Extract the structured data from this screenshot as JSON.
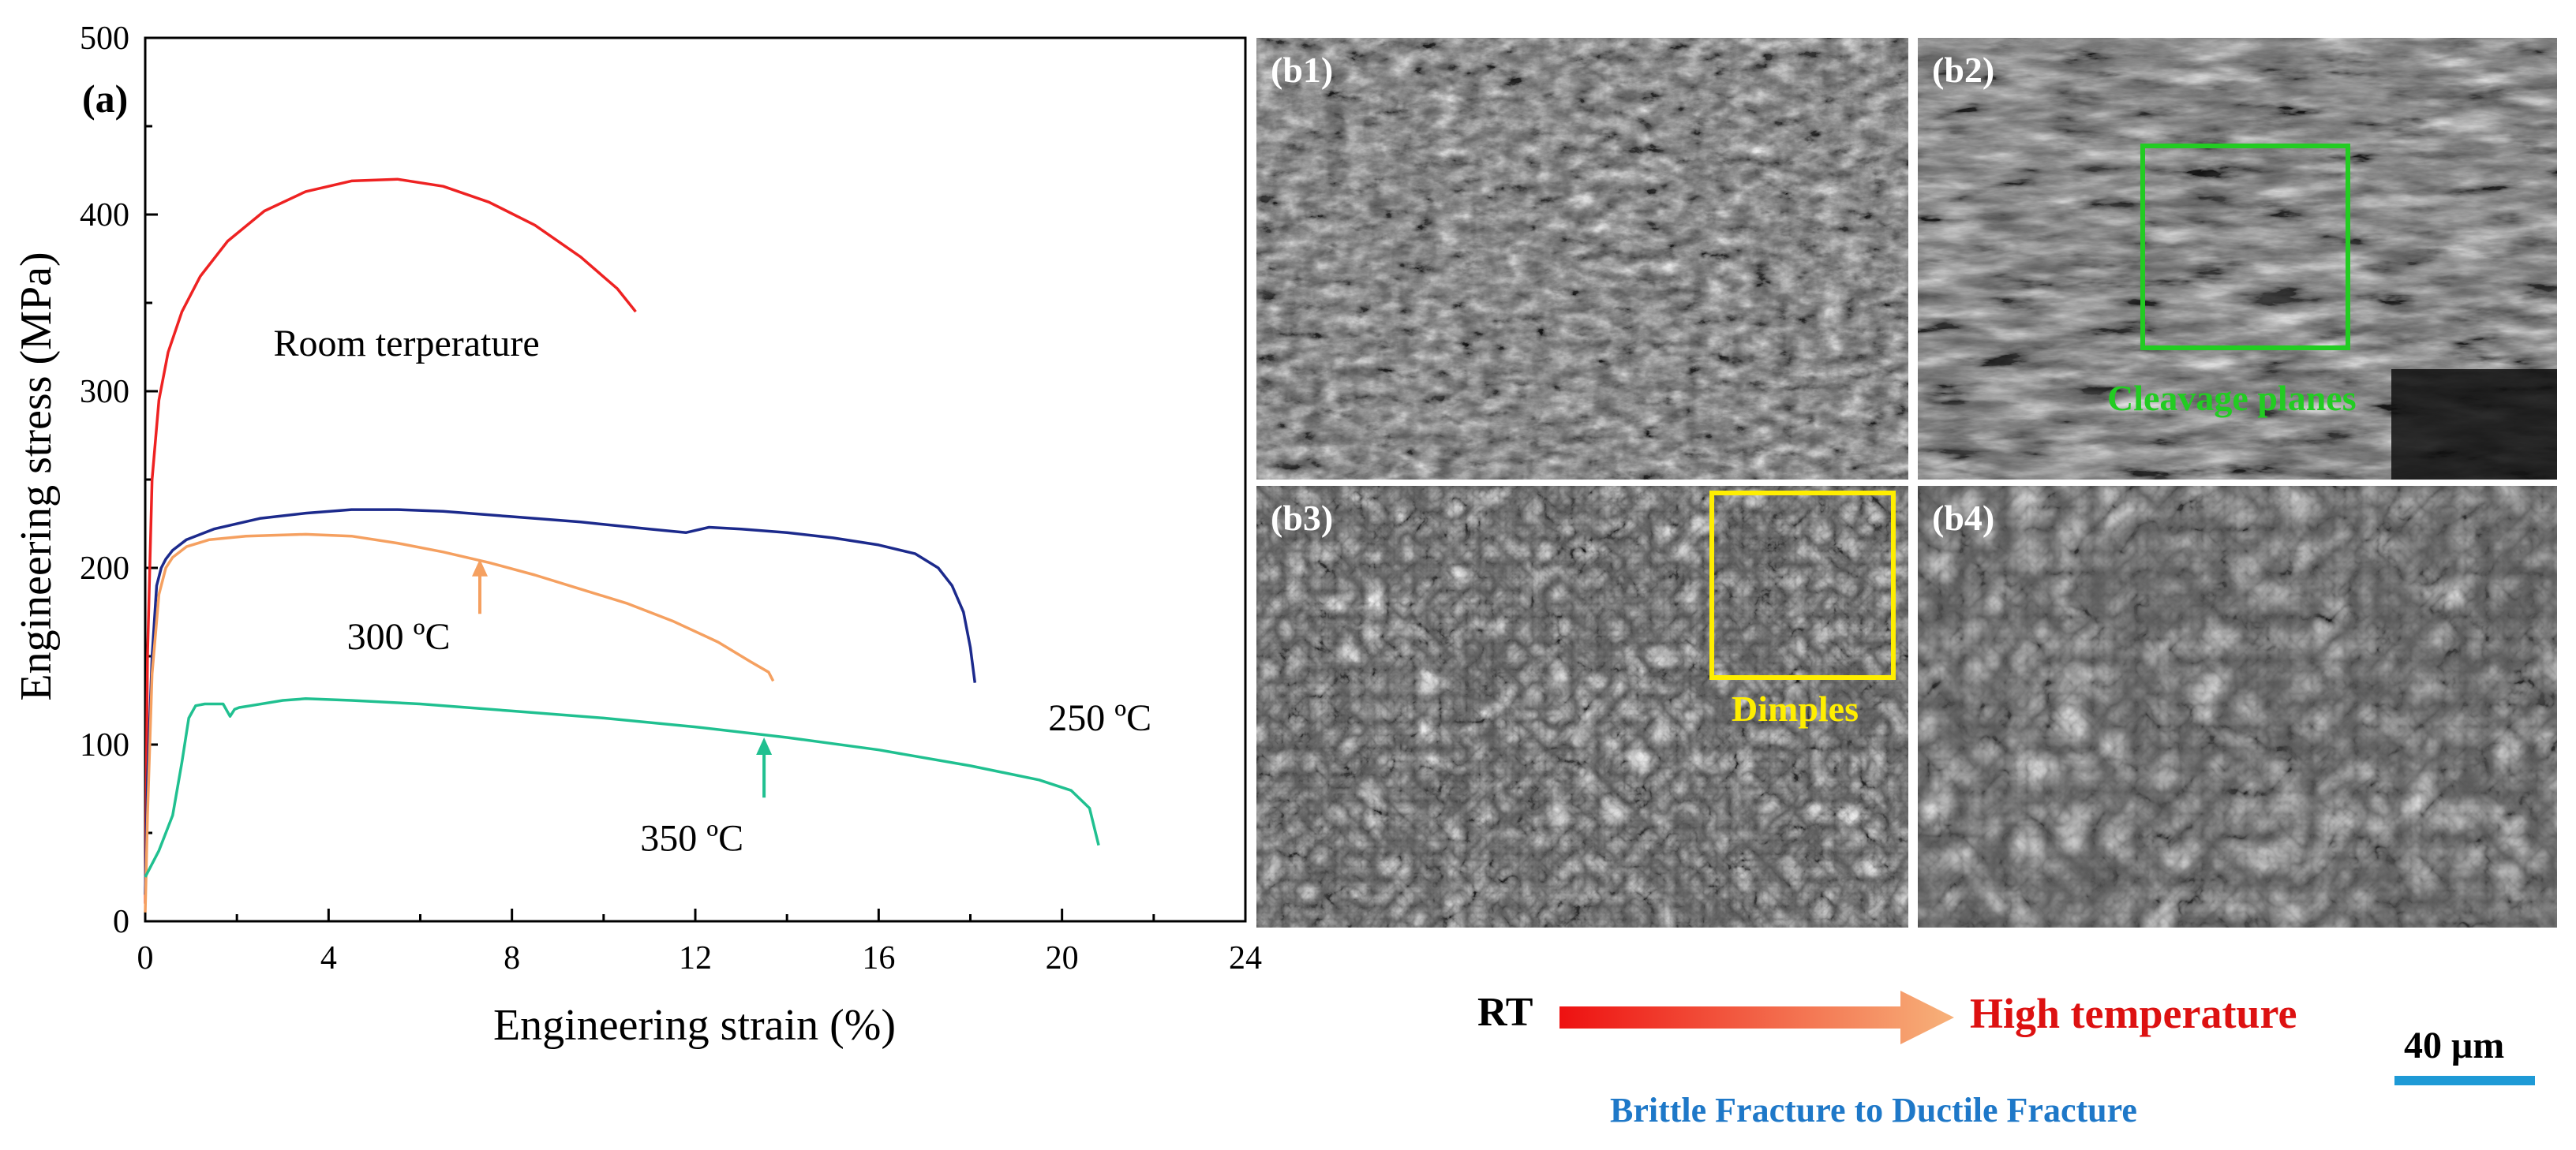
{
  "chart_data": {
    "type": "line",
    "panel_label": "(a)",
    "xlabel": "Engineering strain (%)",
    "ylabel": "Engineering stress (MPa)",
    "xlim": [
      0,
      24
    ],
    "ylim": [
      0,
      500
    ],
    "xticks": [
      0,
      4,
      8,
      12,
      16,
      20,
      24
    ],
    "yticks": [
      0,
      100,
      200,
      300,
      400,
      500
    ],
    "grid": false,
    "series": [
      {
        "name": "Room terperature",
        "color": "#ee2222",
        "x": [
          0,
          0.05,
          0.15,
          0.3,
          0.5,
          0.8,
          1.2,
          1.8,
          2.6,
          3.5,
          4.5,
          5.5,
          6.5,
          7.5,
          8.5,
          9.5,
          10.3,
          10.7
        ],
        "y": [
          10,
          150,
          250,
          295,
          322,
          345,
          365,
          385,
          402,
          413,
          419,
          420,
          416,
          407,
          394,
          376,
          358,
          345
        ]
      },
      {
        "name": "250 ºC",
        "color": "#1c2a8c",
        "x": [
          0,
          0.05,
          0.15,
          0.25,
          0.35,
          0.45,
          0.6,
          0.9,
          1.5,
          2.5,
          3.5,
          4.5,
          5.5,
          6.5,
          8,
          9.5,
          11,
          11.8,
          12.3,
          13,
          14,
          15,
          16,
          16.8,
          17.3,
          17.6,
          17.85,
          18.0,
          18.1
        ],
        "y": [
          15,
          80,
          150,
          190,
          200,
          205,
          210,
          216,
          222,
          228,
          231,
          233,
          233,
          232,
          229,
          226,
          222,
          220,
          223,
          222,
          220,
          217,
          213,
          208,
          200,
          190,
          175,
          155,
          135
        ]
      },
      {
        "name": "300 ºC",
        "color": "#f5a060",
        "x": [
          0,
          0.05,
          0.15,
          0.3,
          0.45,
          0.6,
          0.9,
          1.4,
          2.2,
          3.5,
          4.5,
          5.5,
          6.5,
          7.5,
          8.5,
          9.5,
          10.5,
          11.5,
          12.5,
          13.2,
          13.6,
          13.7
        ],
        "y": [
          5,
          60,
          140,
          185,
          200,
          206,
          212,
          216,
          218,
          219,
          218,
          214,
          209,
          203,
          196,
          188,
          180,
          170,
          158,
          147,
          141,
          136
        ]
      },
      {
        "name": "350 ºC",
        "color": "#20c090",
        "x": [
          0,
          0.3,
          0.6,
          0.8,
          0.95,
          1.1,
          1.3,
          1.7,
          1.85,
          1.95,
          2.05,
          2.3,
          3.0,
          3.5,
          4.5,
          6,
          8,
          10,
          12,
          14,
          16,
          18,
          19.5,
          20.2,
          20.6,
          20.8
        ],
        "y": [
          25,
          40,
          60,
          90,
          115,
          122,
          123,
          123,
          116,
          120,
          121,
          122,
          125,
          126,
          125,
          123,
          119,
          115,
          110,
          104,
          97,
          88,
          80,
          74,
          64,
          43
        ]
      }
    ],
    "annotations": [
      {
        "text": "Room terperature",
        "series": 0
      },
      {
        "text": "250 ºC",
        "series": 1
      },
      {
        "text": "300 ºC",
        "series": 2,
        "arrow_to": [
          7.3,
          205
        ]
      },
      {
        "text": "350 ºC",
        "series": 3,
        "arrow_to": [
          13.5,
          104
        ]
      }
    ]
  },
  "panels": {
    "b1": {
      "label": "(b1)"
    },
    "b2": {
      "label": "(b2)",
      "box_label": "Cleavage planes",
      "box_color": "#22cc22"
    },
    "b3": {
      "label": "(b3)",
      "box_label": "Dimples",
      "box_color": "#ffee00"
    },
    "b4": {
      "label": "(b4)"
    }
  },
  "legend_bottom": {
    "start": "RT",
    "end": "High temperature",
    "end_color": "#dd1111",
    "caption": "Brittle Fracture to Ductile Fracture",
    "caption_color": "#1e78c8",
    "scale_bar": "40 μm",
    "scale_bar_color": "#1e9ad6"
  },
  "colors": {
    "arrow_gradient_start": "#ee1111",
    "arrow_gradient_end": "#f7b27a"
  }
}
